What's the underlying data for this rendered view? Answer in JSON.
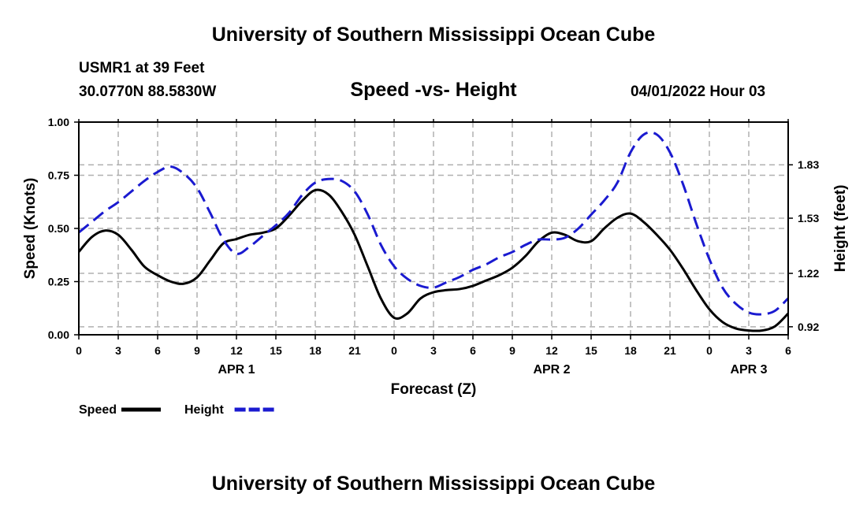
{
  "header": {
    "title": "University of Southern Mississippi Ocean Cube",
    "station": "USMR1 at 39 Feet",
    "coords": "30.0770N  88.5830W",
    "subtitle": "Speed -vs- Height",
    "datetime": "04/01/2022 Hour 03"
  },
  "footer": {
    "title": "University of Southern Mississippi Ocean Cube"
  },
  "chart_data": {
    "type": "line",
    "title": "Speed -vs- Height",
    "xlabel": "Forecast (Z)",
    "ylabel": "Speed (Knots)",
    "y2label": "Height (feet)",
    "grid": true,
    "xlim": [
      0,
      54
    ],
    "ylim": [
      0,
      1.0
    ],
    "y2lim": [
      0.875,
      2.07
    ],
    "x_ticks": [
      0,
      3,
      6,
      9,
      12,
      15,
      18,
      21,
      24,
      27,
      30,
      33,
      36,
      39,
      42,
      45,
      48,
      51,
      54
    ],
    "x_tick_labels": [
      "0",
      "3",
      "6",
      "9",
      "12",
      "15",
      "18",
      "21",
      "0",
      "3",
      "6",
      "9",
      "12",
      "15",
      "18",
      "21",
      "0",
      "3",
      "6"
    ],
    "day_labels": [
      {
        "x": 12,
        "label": "APR 1"
      },
      {
        "x": 36,
        "label": "APR 2"
      },
      {
        "x": 51,
        "label": "APR 3"
      }
    ],
    "y_ticks": [
      0.0,
      0.25,
      0.5,
      0.75,
      1.0
    ],
    "y_tick_labels": [
      "0.00",
      "0.25",
      "0.50",
      "0.75",
      "1.00"
    ],
    "y2_ticks": [
      0.92,
      1.22,
      1.53,
      1.83
    ],
    "y2_tick_labels": [
      "0.92",
      "1.22",
      "1.53",
      "1.83"
    ],
    "legend": [
      {
        "name": "Speed",
        "color": "#000000",
        "style": "solid"
      },
      {
        "name": "Height",
        "color": "#1a1ad0",
        "style": "dashed"
      }
    ],
    "series": [
      {
        "name": "Speed",
        "axis": "left",
        "color": "#000000",
        "style": "solid",
        "x": [
          0,
          1,
          2,
          3,
          4,
          5,
          6,
          7,
          8,
          9,
          10,
          11,
          12,
          13,
          14,
          15,
          16,
          17,
          18,
          19,
          20,
          21,
          22,
          23,
          24,
          25,
          26,
          27,
          28,
          29,
          30,
          31,
          32,
          33,
          34,
          35,
          36,
          37,
          38,
          39,
          40,
          41,
          42,
          43,
          44,
          45,
          46,
          47,
          48,
          49,
          50,
          51,
          52,
          53,
          54
        ],
        "values": [
          0.39,
          0.46,
          0.49,
          0.47,
          0.4,
          0.32,
          0.28,
          0.25,
          0.24,
          0.27,
          0.35,
          0.43,
          0.45,
          0.47,
          0.48,
          0.5,
          0.56,
          0.63,
          0.68,
          0.66,
          0.58,
          0.47,
          0.32,
          0.17,
          0.08,
          0.1,
          0.17,
          0.2,
          0.21,
          0.215,
          0.23,
          0.255,
          0.28,
          0.315,
          0.37,
          0.44,
          0.48,
          0.47,
          0.44,
          0.44,
          0.5,
          0.55,
          0.57,
          0.53,
          0.47,
          0.4,
          0.31,
          0.21,
          0.12,
          0.06,
          0.03,
          0.02,
          0.02,
          0.04,
          0.1
        ]
      },
      {
        "name": "Height",
        "axis": "right",
        "color": "#1a1ad0",
        "style": "dashed",
        "x": [
          0,
          1,
          2,
          3,
          4,
          5,
          6,
          7,
          8,
          9,
          10,
          11,
          12,
          13,
          14,
          15,
          16,
          17,
          18,
          19,
          20,
          21,
          22,
          23,
          24,
          25,
          26,
          27,
          28,
          29,
          30,
          31,
          32,
          33,
          34,
          35,
          36,
          37,
          38,
          39,
          40,
          41,
          42,
          43,
          44,
          45,
          46,
          47,
          48,
          49,
          50,
          51,
          52,
          53,
          54
        ],
        "values": [
          1.45,
          1.51,
          1.57,
          1.62,
          1.68,
          1.74,
          1.79,
          1.82,
          1.78,
          1.7,
          1.56,
          1.41,
          1.33,
          1.37,
          1.43,
          1.49,
          1.56,
          1.66,
          1.73,
          1.75,
          1.74,
          1.68,
          1.55,
          1.38,
          1.26,
          1.19,
          1.15,
          1.14,
          1.17,
          1.2,
          1.24,
          1.27,
          1.31,
          1.34,
          1.38,
          1.41,
          1.41,
          1.42,
          1.47,
          1.55,
          1.63,
          1.73,
          1.9,
          2.0,
          2.0,
          1.9,
          1.72,
          1.5,
          1.3,
          1.14,
          1.05,
          1.0,
          0.99,
          1.01,
          1.08
        ]
      }
    ]
  }
}
